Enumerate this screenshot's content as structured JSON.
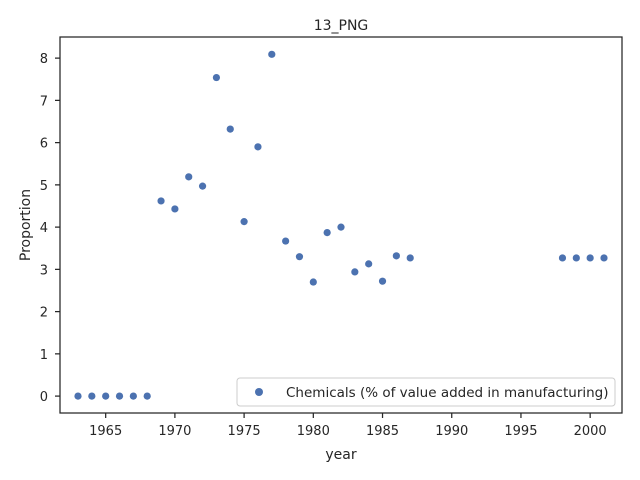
{
  "chart_data": {
    "type": "scatter",
    "title": "13_PNG",
    "xlabel": "year",
    "ylabel": "Proportion",
    "xlim": [
      1961.7,
      2002.3
    ],
    "ylim": [
      -0.4,
      8.5
    ],
    "xticks": [
      1965,
      1970,
      1975,
      1980,
      1985,
      1990,
      1995,
      2000
    ],
    "yticks": [
      0,
      1,
      2,
      3,
      4,
      5,
      6,
      7,
      8
    ],
    "grid": false,
    "legend_position": "lower-right",
    "series": [
      {
        "name": "Chemicals (% of value added in manufacturing)",
        "color": "#4c72b0",
        "points": [
          {
            "x": 1963,
            "y": 0.0
          },
          {
            "x": 1964,
            "y": 0.0
          },
          {
            "x": 1965,
            "y": 0.0
          },
          {
            "x": 1966,
            "y": 0.0
          },
          {
            "x": 1967,
            "y": 0.0
          },
          {
            "x": 1968,
            "y": 0.0
          },
          {
            "x": 1969,
            "y": 4.62
          },
          {
            "x": 1970,
            "y": 4.43
          },
          {
            "x": 1971,
            "y": 5.19
          },
          {
            "x": 1972,
            "y": 4.97
          },
          {
            "x": 1973,
            "y": 7.54
          },
          {
            "x": 1974,
            "y": 6.32
          },
          {
            "x": 1975,
            "y": 4.13
          },
          {
            "x": 1976,
            "y": 5.9
          },
          {
            "x": 1977,
            "y": 8.09
          },
          {
            "x": 1978,
            "y": 3.67
          },
          {
            "x": 1979,
            "y": 3.3
          },
          {
            "x": 1980,
            "y": 2.7
          },
          {
            "x": 1981,
            "y": 3.87
          },
          {
            "x": 1982,
            "y": 4.0
          },
          {
            "x": 1983,
            "y": 2.94
          },
          {
            "x": 1984,
            "y": 3.13
          },
          {
            "x": 1985,
            "y": 2.72
          },
          {
            "x": 1986,
            "y": 3.32
          },
          {
            "x": 1987,
            "y": 3.27
          },
          {
            "x": 1998,
            "y": 3.27
          },
          {
            "x": 1999,
            "y": 3.27
          },
          {
            "x": 2000,
            "y": 3.27
          },
          {
            "x": 2001,
            "y": 3.27
          }
        ]
      }
    ]
  }
}
